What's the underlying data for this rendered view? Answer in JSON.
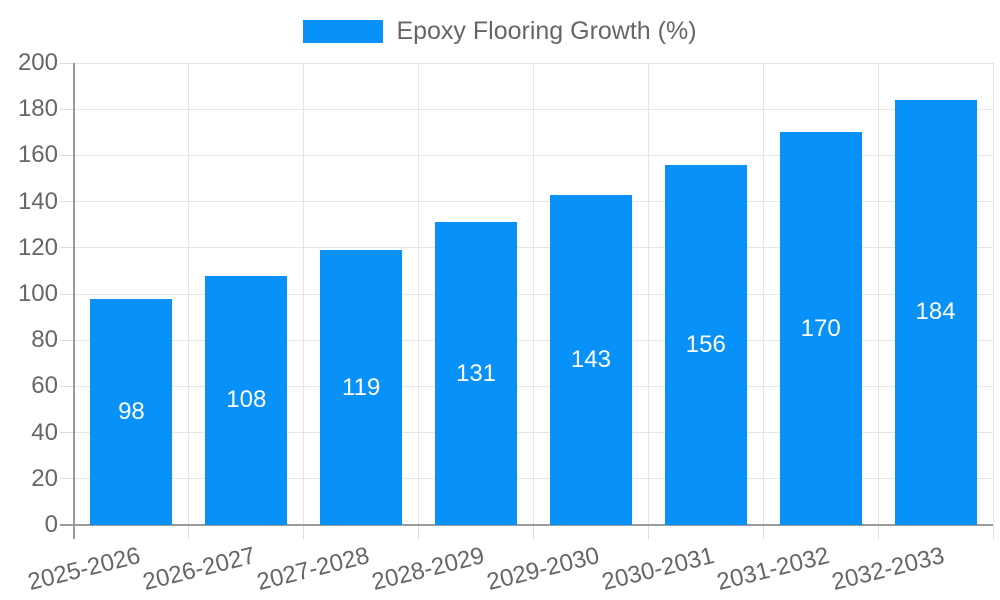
{
  "chart_data": {
    "type": "bar",
    "title": "",
    "legend": {
      "label": "Epoxy Flooring Growth (%)",
      "position": "top"
    },
    "categories": [
      "2025-2026",
      "2026-2027",
      "2027-2028",
      "2028-2029",
      "2029-2030",
      "2030-2031",
      "2031-2032",
      "2032-2033"
    ],
    "values": [
      98,
      108,
      119,
      131,
      143,
      156,
      170,
      184
    ],
    "xlabel": "",
    "ylabel": "",
    "ylim": [
      0,
      200
    ],
    "ytick_step": 20,
    "ytick_labels": [
      "0",
      "20",
      "40",
      "60",
      "80",
      "100",
      "120",
      "140",
      "160",
      "180",
      "200"
    ],
    "grid": true,
    "value_labels_shown_inside_bars": true,
    "colors": {
      "bar": "#0892F9",
      "grid_line": "#E6E6E6",
      "tick_line": "#DCDCDC",
      "axis_line": "#9A9A9A",
      "tick_label": "#666666",
      "value_label": "#FFFFFF",
      "background": "#FFFFFF"
    }
  }
}
